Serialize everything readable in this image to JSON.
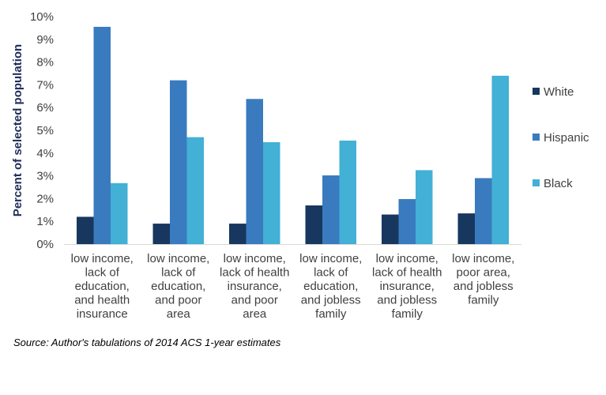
{
  "chart_data": {
    "type": "bar",
    "title": "",
    "xlabel": "",
    "ylabel": "Percent of selected population",
    "ylim": [
      0,
      10
    ],
    "yticks": [
      0,
      1,
      2,
      3,
      4,
      5,
      6,
      7,
      8,
      9,
      10
    ],
    "ytick_labels": [
      "0%",
      "1%",
      "2%",
      "3%",
      "4%",
      "5%",
      "6%",
      "7%",
      "8%",
      "9%",
      "10%"
    ],
    "categories": [
      [
        "low income,",
        "lack of",
        "education,",
        "and health",
        "insurance"
      ],
      [
        "low income,",
        "lack of",
        "education,",
        "and poor",
        "area"
      ],
      [
        "low income,",
        "lack of health",
        "insurance,",
        "and poor",
        "area"
      ],
      [
        "low income,",
        "lack of",
        "education,",
        "and jobless",
        "family"
      ],
      [
        "low income,",
        "lack of health",
        "insurance,",
        "and jobless",
        "family"
      ],
      [
        "low income,",
        "poor area,",
        "and jobless",
        "family"
      ]
    ],
    "series": [
      {
        "name": "White",
        "color": "#17375e",
        "values": [
          1.2,
          0.9,
          0.9,
          1.7,
          1.3,
          1.35
        ]
      },
      {
        "name": "Hispanic",
        "color": "#3a7bbf",
        "values": [
          9.55,
          7.2,
          6.38,
          3.02,
          1.98,
          2.9
        ]
      },
      {
        "name": "Black",
        "color": "#43b0d6",
        "values": [
          2.68,
          4.7,
          4.48,
          4.55,
          3.25,
          7.4
        ]
      }
    ],
    "legend_position": "right",
    "grid": false
  },
  "source": "Source: Author's tabulations of 2014 ACS 1-year estimates"
}
